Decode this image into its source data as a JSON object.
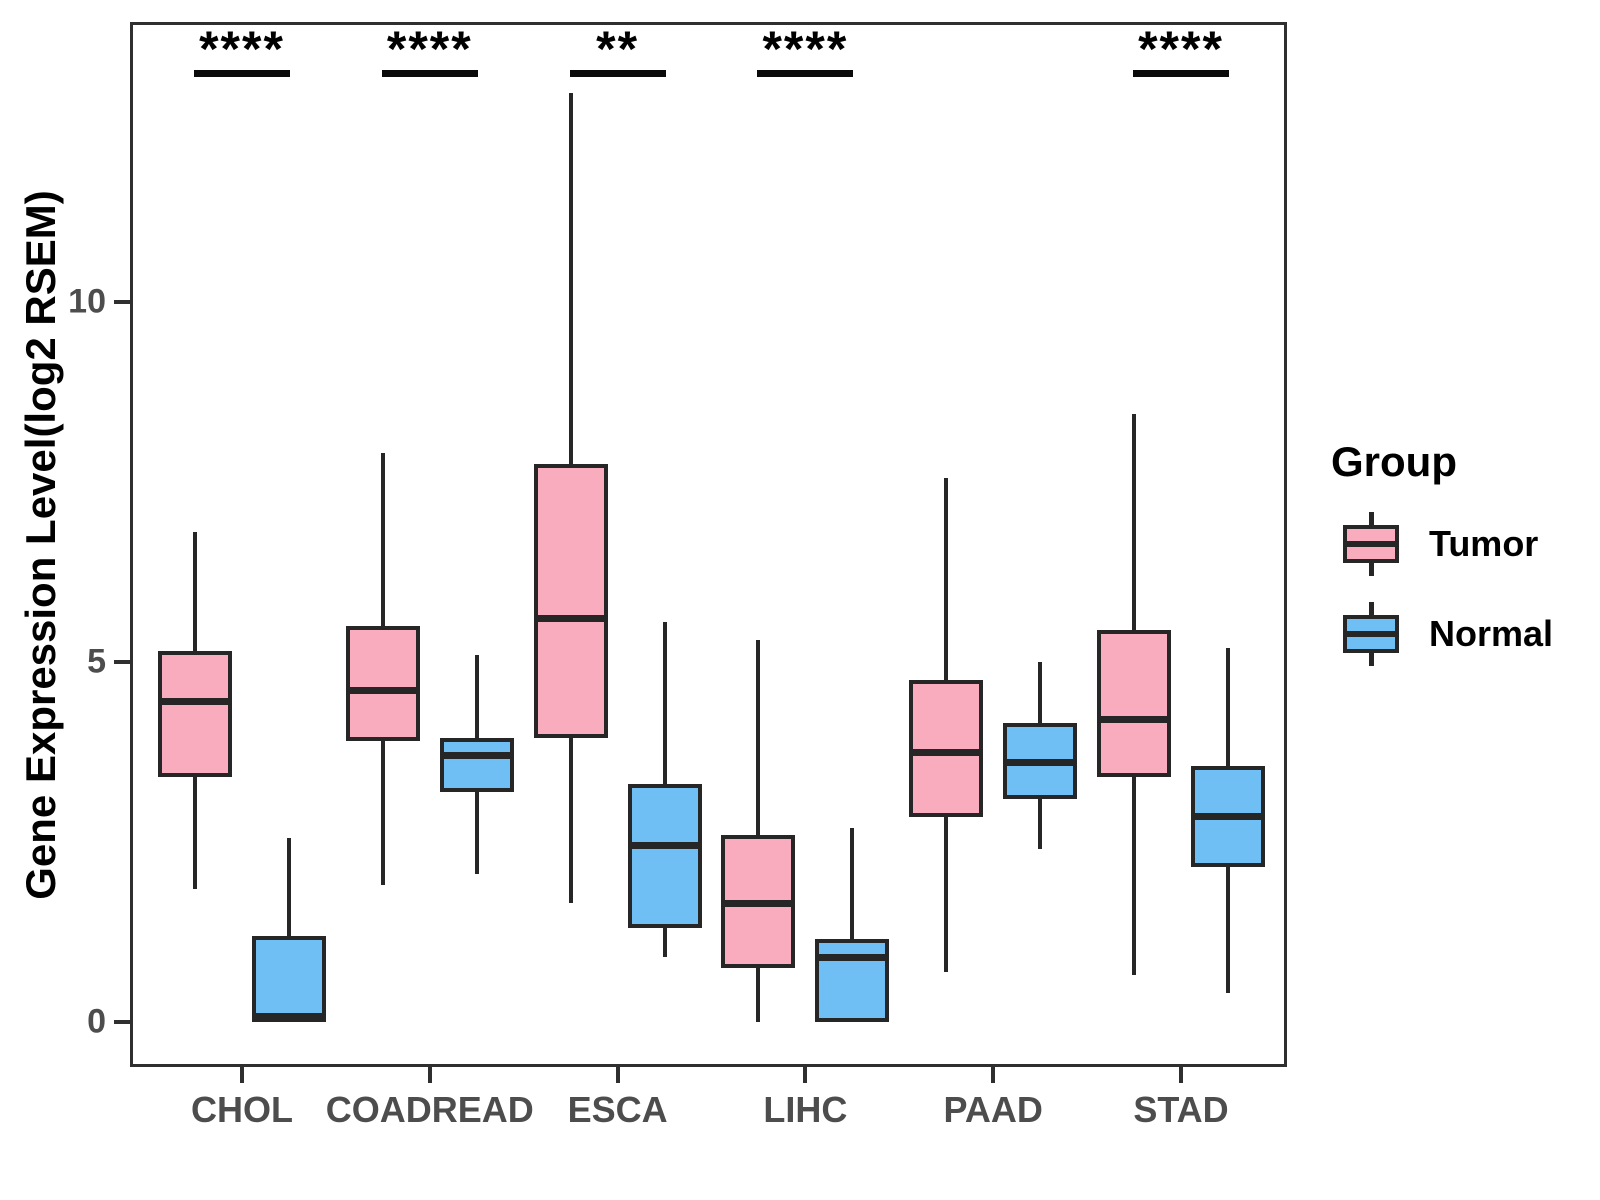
{
  "chart_data": {
    "type": "boxplot",
    "title": "",
    "xlabel": "",
    "ylabel": "Gene Expression Level(log2 RSEM)",
    "ylim": [
      -0.7,
      13.9
    ],
    "yticks": [
      0,
      5,
      10
    ],
    "grid": false,
    "categories": [
      "CHOL",
      "COADREAD",
      "ESCA",
      "LIHC",
      "PAAD",
      "STAD"
    ],
    "significance_by_category": [
      "****",
      "****",
      "**",
      "****",
      "",
      "****"
    ],
    "legend": {
      "title": "Group",
      "position": "right",
      "entries": [
        "Tumor",
        "Normal"
      ]
    },
    "groups": [
      {
        "name": "Tumor",
        "color": "#F9ACBD",
        "boxes": [
          {
            "category": "CHOL",
            "low": 1.85,
            "q1": 3.4,
            "median": 4.45,
            "q3": 5.15,
            "high": 6.8
          },
          {
            "category": "COADREAD",
            "low": 1.9,
            "q1": 3.9,
            "median": 4.6,
            "q3": 5.5,
            "high": 7.9
          },
          {
            "category": "ESCA",
            "low": 1.65,
            "q1": 3.95,
            "median": 5.6,
            "q3": 7.75,
            "high": 12.9
          },
          {
            "category": "LIHC",
            "low": 0.0,
            "q1": 0.75,
            "median": 1.65,
            "q3": 2.6,
            "high": 5.3
          },
          {
            "category": "PAAD",
            "low": 0.7,
            "q1": 2.85,
            "median": 3.75,
            "q3": 4.75,
            "high": 7.55
          },
          {
            "category": "STAD",
            "low": 0.65,
            "q1": 3.4,
            "median": 4.2,
            "q3": 5.45,
            "high": 8.45
          }
        ]
      },
      {
        "name": "Normal",
        "color": "#70BFF4",
        "boxes": [
          {
            "category": "CHOL",
            "low": 0.0,
            "q1": 0.0,
            "median": 0.07,
            "q3": 1.2,
            "high": 2.55
          },
          {
            "category": "COADREAD",
            "low": 2.05,
            "q1": 3.2,
            "median": 3.7,
            "q3": 3.95,
            "high": 5.1
          },
          {
            "category": "ESCA",
            "low": 0.9,
            "q1": 1.3,
            "median": 2.45,
            "q3": 3.3,
            "high": 5.55
          },
          {
            "category": "LIHC",
            "low": 0.0,
            "q1": 0.0,
            "median": 0.9,
            "q3": 1.15,
            "high": 2.7
          },
          {
            "category": "PAAD",
            "low": 2.4,
            "q1": 3.1,
            "median": 3.6,
            "q3": 4.15,
            "high": 5.0
          },
          {
            "category": "STAD",
            "low": 0.4,
            "q1": 2.15,
            "median": 2.85,
            "q3": 3.55,
            "high": 5.2
          }
        ]
      }
    ],
    "colors": {
      "tumor_fill": "#F9ACBD",
      "normal_fill": "#70BFF4",
      "box_border": "#262626",
      "axis_text": "#4d4d4d",
      "panel_border": "#2f2f2f",
      "significance": "#000000"
    }
  }
}
